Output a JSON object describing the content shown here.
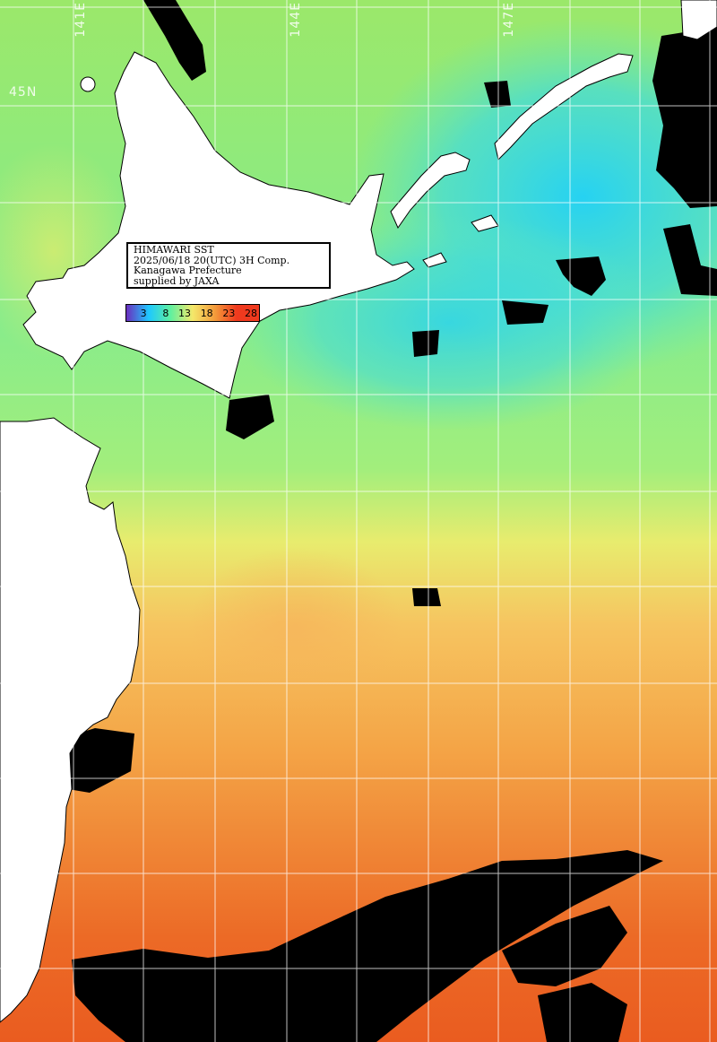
{
  "map": {
    "title_lines": [
      "HIMAWARI SST",
      "2025/06/18 20(UTC) 3H Comp.",
      "Kanagawa Prefecture",
      "supplied by JAXA"
    ],
    "lon_labels": [
      "141E",
      "144E",
      "147E"
    ],
    "lat_labels": [
      "45N"
    ],
    "colorbar": {
      "ticks": [
        "3",
        "8",
        "13",
        "18",
        "23",
        "28"
      ],
      "colors": [
        "#6a2fbf",
        "#1ec8ff",
        "#5ef0a0",
        "#f4e86a",
        "#f39a3a",
        "#f03a1e"
      ]
    },
    "colors": {
      "land": "#ffffff",
      "cloud_mask": "#000000",
      "grid": "#ffffff",
      "cold_water": "#2fd8f0",
      "cool_water": "#7df08a",
      "mild_water": "#f0e870",
      "warm_water": "#f4a246",
      "hot_water": "#ee5a1c"
    }
  }
}
